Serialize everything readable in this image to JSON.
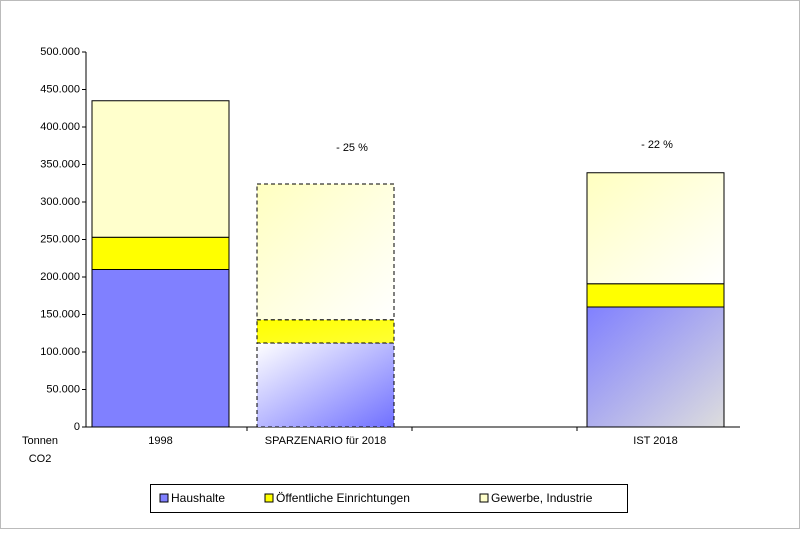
{
  "chart_data": {
    "type": "stacked_bar",
    "categories": [
      "1998",
      "SPARZENARIO für 2018",
      null,
      "IST 2018"
    ],
    "series": [
      {
        "name": "Haushalte",
        "color": "#8080ff",
        "values": [
          210000,
          112000,
          null,
          160000
        ]
      },
      {
        "name": "Öffentliche Einrichtungen",
        "color": "#ffff00",
        "values": [
          43000,
          31000,
          null,
          31000
        ]
      },
      {
        "name": "Gewerbe, Industrie",
        "color": "#ffffcc",
        "values": [
          182000,
          181000,
          null,
          148000
        ]
      }
    ],
    "ylim": [
      0,
      500000
    ],
    "yticks": [
      0,
      {
        "value": 50000,
        "label": "50.000"
      },
      {
        "value": 100000,
        "label": "100.000"
      },
      {
        "value": 150000,
        "label": "150.000"
      },
      {
        "value": 200000,
        "label": "200.000"
      },
      {
        "value": 250000,
        "label": "250.000"
      },
      {
        "value": 300000,
        "label": "300.000"
      },
      {
        "value": 350000,
        "label": "350.000"
      },
      {
        "value": 400000,
        "label": "400.000"
      },
      {
        "value": 450000,
        "label": "450.000"
      },
      {
        "value": 500000,
        "label": "500.000"
      }
    ],
    "ylabel_lines": [
      "Tonnen",
      "CO2"
    ],
    "annotations": [
      "- 25 %",
      "- 22 %"
    ],
    "legend": "bottom"
  }
}
